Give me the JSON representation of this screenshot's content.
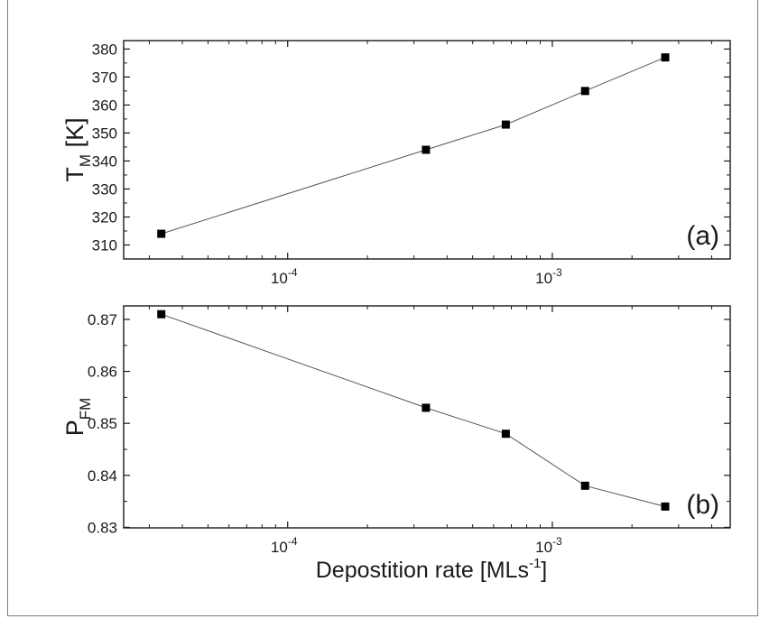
{
  "chart_data": [
    {
      "type": "line",
      "panel_label": "(a)",
      "ylabel_main": "T",
      "ylabel_sub": "M",
      "ylabel_unit": "[K]",
      "xscale": "log",
      "xlim": [
        2.4e-05,
        0.0047
      ],
      "ylim": [
        305,
        383
      ],
      "yticks": [
        "310",
        "320",
        "330",
        "340",
        "350",
        "360",
        "370",
        "380"
      ],
      "ytick_values": [
        310,
        320,
        330,
        340,
        350,
        360,
        370,
        380
      ],
      "xticks": [
        {
          "base": "10",
          "exp": "-4",
          "value": 0.0001
        },
        {
          "base": "10",
          "exp": "-3",
          "value": 0.001
        }
      ],
      "x": [
        3.33e-05,
        0.000333,
        0.000667,
        0.00133,
        0.00267
      ],
      "y": [
        314,
        344,
        353,
        365,
        377
      ],
      "marker": "square",
      "line_color": "#555555",
      "marker_color": "#000000"
    },
    {
      "type": "line",
      "panel_label": "(b)",
      "ylabel_main": "P",
      "ylabel_sub": "FM",
      "ylabel_unit": "",
      "xscale": "log",
      "xlim": [
        2.4e-05,
        0.0047
      ],
      "ylim": [
        0.8299,
        0.8726
      ],
      "yticks": [
        "0.83",
        "0.84",
        "0.85",
        "0.86",
        "0.87"
      ],
      "ytick_values": [
        0.83,
        0.84,
        0.85,
        0.86,
        0.87
      ],
      "xticks": [
        {
          "base": "10",
          "exp": "-4",
          "value": 0.0001
        },
        {
          "base": "10",
          "exp": "-3",
          "value": 0.001
        }
      ],
      "x": [
        3.33e-05,
        0.000333,
        0.000667,
        0.00133,
        0.00267
      ],
      "y": [
        0.871,
        0.853,
        0.848,
        0.838,
        0.834
      ],
      "marker": "square",
      "line_color": "#555555",
      "marker_color": "#000000"
    }
  ],
  "xlabel": {
    "main": "Depostition rate [MLs",
    "sup": "-1",
    "end": "]"
  }
}
